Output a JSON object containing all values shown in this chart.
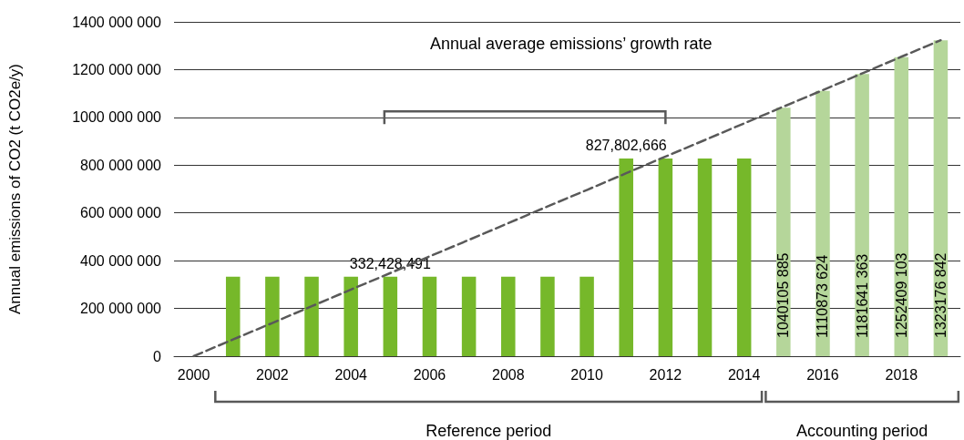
{
  "chart_data": {
    "type": "bar",
    "ylabel": "Annual emissions of CO2 (t CO2e/y)",
    "categories": [
      "2000",
      null,
      "2002",
      null,
      "2004",
      null,
      "2006",
      null,
      "2008",
      null,
      "2010",
      null,
      "2012",
      null,
      "2014",
      null,
      "2016",
      null,
      "2018",
      null
    ],
    "series": [
      {
        "colors": [
          "#76b82a",
          "#76b82a",
          "#76b82a",
          "#76b82a",
          "#76b82a",
          "#76b82a",
          "#76b82a",
          "#76b82a",
          "#76b82a",
          "#76b82a",
          "#76b82a",
          "#76b82a",
          "#76b82a",
          "#76b82a",
          "#76b82a",
          "#b5d69a",
          "#b5d69a",
          "#b5d69a",
          "#b5d69a",
          "#b5d69a"
        ],
        "values": [
          null,
          332428491,
          332428491,
          332428491,
          332428491,
          332428491,
          332428491,
          332428491,
          332428491,
          332428491,
          332428491,
          827802666,
          827802666,
          827802666,
          827802666,
          1040105885,
          1110873624,
          1181641363,
          1252409103,
          1323176842
        ],
        "value_labels": [
          null,
          null,
          null,
          null,
          null,
          "332,428,491",
          null,
          null,
          null,
          null,
          null,
          "827,802,666",
          null,
          null,
          null,
          "1040105 885",
          "1110873 624",
          "1181641 363",
          "1252409 103",
          "1323176 842"
        ]
      },
      {
        "type": "line",
        "color": "#595959",
        "line_style": "dashed",
        "marker": "none",
        "values": [
          0,
          70000000,
          139000000,
          209000000,
          279000000,
          348000000,
          418000000,
          487000000,
          557000000,
          627000000,
          696000000,
          766000000,
          836000000,
          905000000,
          975000000,
          1045000000,
          1114000000,
          1184000000,
          1254000000,
          1323000000
        ]
      }
    ],
    "ylim": [
      0,
      1400000000
    ],
    "yticks": [
      0,
      {
        "value": 200000000,
        "label": "200 000 000"
      },
      {
        "value": 400000000,
        "label": "400 000 000"
      },
      {
        "value": 600000000,
        "label": "600 000 000"
      },
      {
        "value": 800000000,
        "label": "800 000 000"
      },
      {
        "value": 1000000000,
        "label": "1000 000 000"
      },
      {
        "value": 1200000000,
        "label": "1200 000 000"
      },
      {
        "value": 1400000000,
        "label": "1400 000 000"
      }
    ],
    "grid": "y",
    "annotations": [
      "Annual average emissions’ growth rate",
      "Reference period",
      "Accounting period"
    ]
  }
}
